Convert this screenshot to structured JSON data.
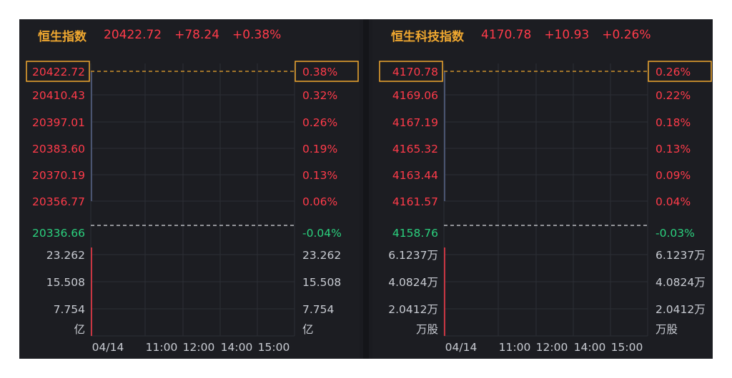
{
  "colors": {
    "up": "#ff3b4a",
    "down": "#2bd17e",
    "accent": "#f0a830",
    "muted": "#c8cbd2",
    "grid": "#2c2e35"
  },
  "chart_data": [
    {
      "type": "line",
      "name": "恒生指数",
      "price": "20422.72",
      "change": "+78.24",
      "change_pct": "+0.38%",
      "price_ticks": [
        "20422.72",
        "20410.43",
        "20397.01",
        "20383.60",
        "20370.19",
        "20356.77",
        "20336.66"
      ],
      "pct_ticks": [
        "0.38%",
        "0.32%",
        "0.26%",
        "0.19%",
        "0.13%",
        "0.06%",
        "-0.04%"
      ],
      "volume_ticks": [
        "23.262",
        "15.508",
        "7.754"
      ],
      "volume_unit": "亿",
      "x_ticks": [
        "04/14",
        "11:00",
        "12:00",
        "14:00",
        "15:00"
      ]
    },
    {
      "type": "line",
      "name": "恒生科技指数",
      "price": "4170.78",
      "change": "+10.93",
      "change_pct": "+0.26%",
      "price_ticks": [
        "4170.78",
        "4169.06",
        "4167.19",
        "4165.32",
        "4163.44",
        "4161.57",
        "4158.76"
      ],
      "pct_ticks": [
        "0.26%",
        "0.22%",
        "0.18%",
        "0.13%",
        "0.09%",
        "0.04%",
        "-0.03%"
      ],
      "volume_ticks": [
        "6.1237万",
        "4.0824万",
        "2.0412万"
      ],
      "volume_unit": "万股",
      "x_ticks": [
        "04/14",
        "11:00",
        "12:00",
        "14:00",
        "15:00"
      ]
    }
  ]
}
